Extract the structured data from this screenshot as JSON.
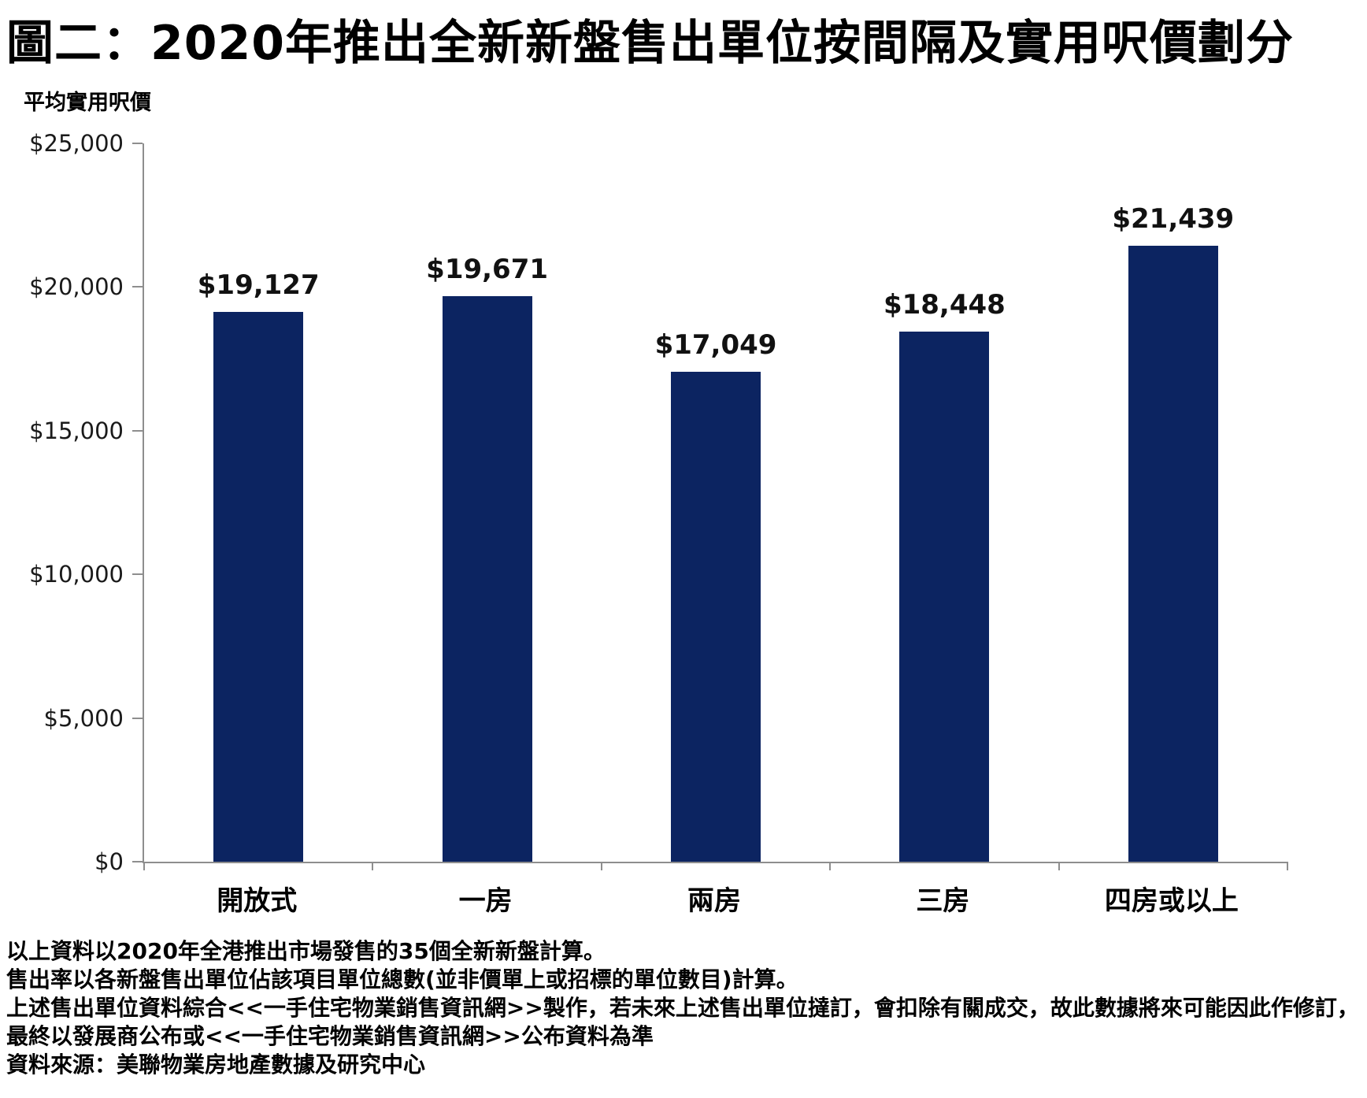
{
  "title": "圖二：2020年推出全新新盤售出單位按間隔及實用呎價劃分",
  "chart_data": {
    "type": "bar",
    "title": "圖二：2020年推出全新新盤售出單位按間隔及實用呎價劃分",
    "ylabel": "平均實用呎價",
    "xlabel": "",
    "categories": [
      "開放式",
      "一房",
      "兩房",
      "三房",
      "四房或以上"
    ],
    "values": [
      19127,
      19671,
      17049,
      18448,
      21439
    ],
    "value_labels": [
      "$19,127",
      "$19,671",
      "$17,049",
      "$18,448",
      "$21,439"
    ],
    "ylim": [
      0,
      25000
    ],
    "ytick_interval": 5000,
    "yticks": [
      {
        "value": 0,
        "label": "$0"
      },
      {
        "value": 5000,
        "label": "$5,000"
      },
      {
        "value": 10000,
        "label": "$10,000"
      },
      {
        "value": 15000,
        "label": "$15,000"
      },
      {
        "value": 20000,
        "label": "$20,000"
      },
      {
        "value": 25000,
        "label": "$25,000"
      }
    ],
    "grid": false,
    "legend_position": "none",
    "bar_color": "#0c2461"
  },
  "footnotes": [
    "以上資料以2020年全港推出市場發售的35個全新新盤計算。",
    "售出率以各新盤售出單位佔該項目單位總數(並非價單上或招標的單位數目)計算。",
    "上述售出單位資料綜合<<一手住宅物業銷售資訊網>>製作，若未來上述售出單位撻訂，會扣除有關成交，故此數據將來可能因此作修訂，",
    "最終以發展商公布或<<一手住宅物業銷售資訊網>>公布資料為準",
    "資料來源：美聯物業房地產數據及研究中心"
  ],
  "colors": {
    "bar": "#0c2461",
    "axis": "#8e8e8e",
    "text": "#000000"
  }
}
